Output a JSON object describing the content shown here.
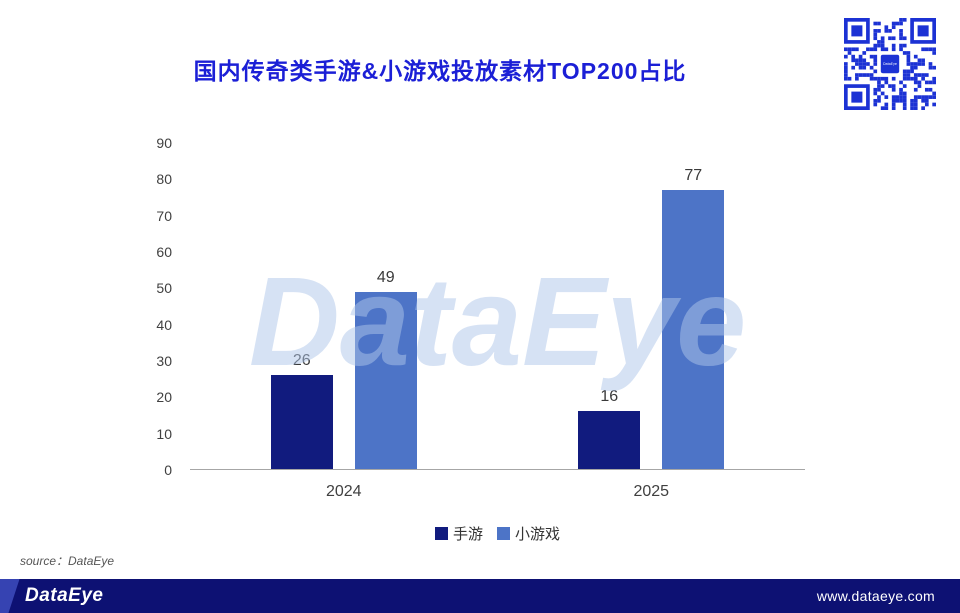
{
  "header": {
    "title": "国内传奇类手游&小游戏投放素材TOP200占比"
  },
  "chart_data": {
    "type": "bar",
    "title": "国内传奇类手游&小游戏投放素材TOP200占比",
    "categories": [
      "2024",
      "2025"
    ],
    "series": [
      {
        "name": "手游",
        "color": "#111B7E",
        "values": [
          26,
          16
        ]
      },
      {
        "name": "小游戏",
        "color": "#4D74C7",
        "values": [
          49,
          77
        ]
      }
    ],
    "xlabel": "",
    "ylabel": "",
    "ylim": [
      0,
      90
    ],
    "yticks": [
      0,
      10,
      20,
      30,
      40,
      50,
      60,
      70,
      80,
      90
    ],
    "grid": false,
    "legend_position": "bottom"
  },
  "watermark": {
    "text": "DataEye"
  },
  "footer": {
    "source": "source：DataEye",
    "logo": "DataEye",
    "website": "www.dataeye.com"
  },
  "colors": {
    "title": "#1B1FD6",
    "watermark": "#AFC6EA",
    "footer_bg": "#0D1173",
    "qr": "#1C32D4"
  }
}
